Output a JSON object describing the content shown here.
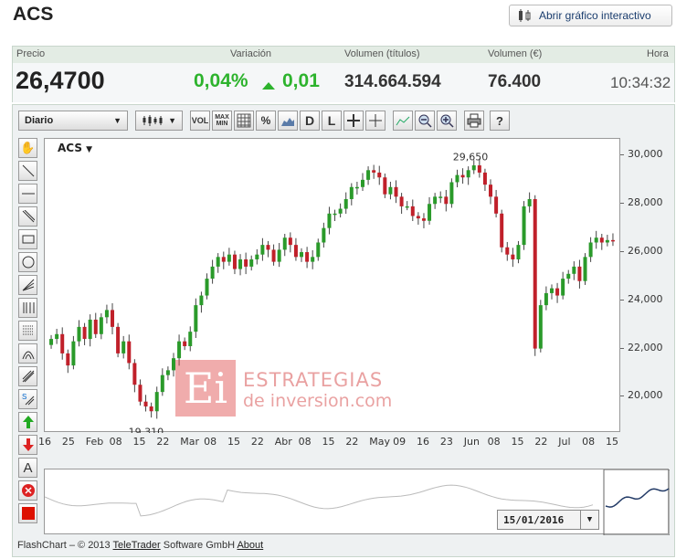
{
  "header": {
    "title": "ACS",
    "interactive_button": "Abrir gráfico interactivo"
  },
  "quote": {
    "labels": {
      "price": "Precio",
      "change": "Variación",
      "volume_shares": "Volumen (títulos)",
      "volume_eur": "Volumen (€)",
      "time": "Hora"
    },
    "price": "26,4700",
    "change_pct": "0,04%",
    "change_abs": "0,01",
    "volume_shares": "314.664.594",
    "volume_eur": "76.400",
    "time": "10:34:32",
    "colors": {
      "up": "#2db32d"
    }
  },
  "toolbar": {
    "period": "Diario",
    "buttons": [
      "VOL",
      "MAX MIN",
      "grid",
      "%",
      "area",
      "D",
      "L",
      "crosshair",
      "crosshair-small",
      "zoom-reset",
      "zoom-out",
      "zoom-in",
      "print",
      "?"
    ]
  },
  "left_tools": [
    "hand-icon",
    "line-icon",
    "horizontal-line-icon",
    "parallel-line-icon",
    "rectangle-icon",
    "circle-icon",
    "fan-icon",
    "fibonacci-icon",
    "grid-lines-icon",
    "arc-icon",
    "channel-icon",
    "s-channel-icon",
    "arrow-up-icon",
    "arrow-down-icon",
    "text-icon",
    "delete-icon",
    "color-icon"
  ],
  "chart": {
    "symbol": "ACS",
    "annot_high": "29,650",
    "annot_low": "19,310",
    "watermark": {
      "line1": "ESTRATEGIAS",
      "line2": "de inversion.com",
      "logo": "Ei"
    },
    "navigator_date": "15/01/2016"
  },
  "chart_data": {
    "type": "candlestick",
    "symbol": "ACS",
    "ylim": [
      18500,
      30700
    ],
    "y_ticks": [
      20000,
      22000,
      24000,
      26000,
      28000,
      30000
    ],
    "y_tick_labels": [
      "20,000",
      "22,000",
      "24,000",
      "26,000",
      "28,000",
      "30,000"
    ],
    "x_tick_labels": [
      "16",
      "25",
      "Feb",
      "08",
      "15",
      "22",
      "Mar",
      "08",
      "15",
      "22",
      "Abr",
      "08",
      "15",
      "22",
      "May",
      "09",
      "16",
      "23",
      "Jun",
      "08",
      "15",
      "22",
      "Jul",
      "08",
      "15"
    ],
    "closes": [
      22400,
      22600,
      21800,
      21300,
      22300,
      22900,
      22400,
      23200,
      22600,
      23300,
      23600,
      22900,
      21800,
      22300,
      21400,
      20500,
      19800,
      19600,
      19400,
      20200,
      20900,
      21100,
      21600,
      22300,
      22100,
      22700,
      23800,
      24200,
      24900,
      25400,
      25800,
      25600,
      25900,
      25300,
      25700,
      25400,
      25700,
      25900,
      26300,
      26100,
      25600,
      26100,
      26600,
      26300,
      25800,
      26000,
      25600,
      25800,
      26400,
      27000,
      27600,
      27600,
      27800,
      28200,
      28700,
      28700,
      29000,
      29400,
      29300,
      29100,
      28400,
      28700,
      28300,
      27900,
      27900,
      27500,
      27400,
      27300,
      28000,
      28300,
      28300,
      28000,
      28900,
      29200,
      29100,
      29400,
      29600,
      29300,
      28800,
      28300,
      27600,
      26200,
      25900,
      25700,
      26300,
      27900,
      28200,
      22000,
      23800,
      24300,
      24500,
      24200,
      24900,
      25100,
      25400,
      24800,
      25800,
      26400,
      26600,
      26400,
      26500,
      26470
    ],
    "annotations": [
      {
        "label": "29,650",
        "value": 29650
      },
      {
        "label": "19,310",
        "value": 19310
      }
    ],
    "navigator": {
      "date": "15/01/2016"
    }
  },
  "footer": {
    "text": "FlashChart – © 2013",
    "link1": "TeleTrader",
    "mid": "Software GmbH",
    "link2": "About"
  }
}
